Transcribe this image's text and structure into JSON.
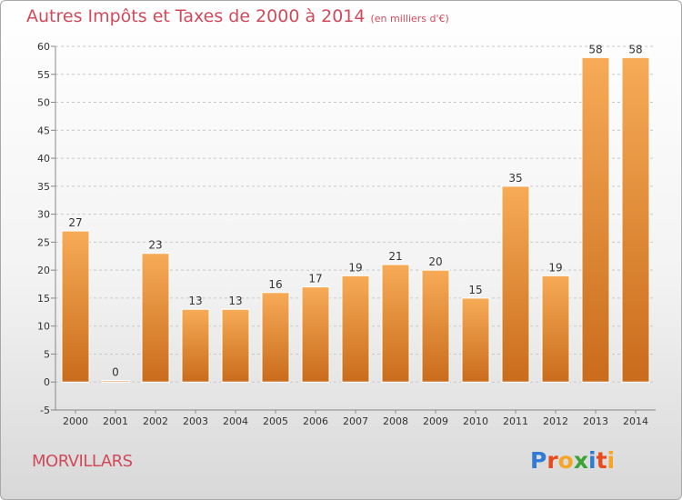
{
  "chart_data": {
    "type": "bar",
    "title": "Autres Impôts et Taxes de 2000 à 2014",
    "subtitle": "(en milliers d'€)",
    "categories": [
      "2000",
      "2001",
      "2002",
      "2003",
      "2004",
      "2005",
      "2006",
      "2007",
      "2008",
      "2009",
      "2010",
      "2011",
      "2012",
      "2013",
      "2014"
    ],
    "values": [
      27,
      0,
      23,
      13,
      13,
      16,
      17,
      19,
      21,
      20,
      15,
      35,
      19,
      58,
      58
    ],
    "ylim": [
      -5,
      60
    ],
    "yticks": [
      -5,
      0,
      5,
      10,
      15,
      20,
      25,
      30,
      35,
      40,
      45,
      50,
      55,
      60
    ],
    "grid": true,
    "bar_color_light": "#f7ab56",
    "bar_color_dark": "#c96c1c"
  },
  "commune": "MORVILLARS",
  "logo": {
    "letters": [
      "P",
      "r",
      "o",
      "x",
      "i",
      "t",
      "i"
    ],
    "colors": [
      "#2f7bd8",
      "#e8491d",
      "#f7a526",
      "#3aa335",
      "#2f7bd8",
      "#e8491d",
      "#f7a526"
    ]
  }
}
